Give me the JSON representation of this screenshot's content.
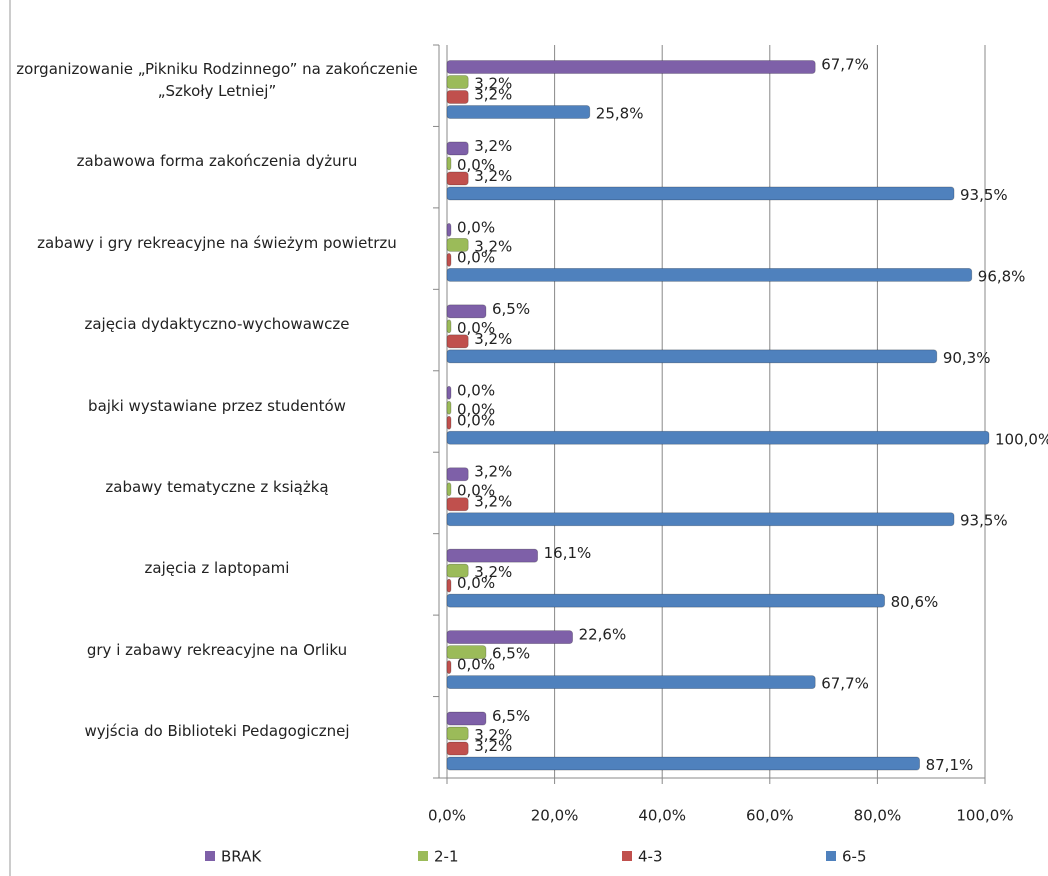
{
  "chart_data": {
    "type": "bar",
    "orientation": "horizontal",
    "categories": [
      "zorganizowanie „Pikniku Rodzinnego” na zakończenie „Szkoły Letniej”",
      "zabawowa forma zakończenia dyżuru",
      "zabawy i gry rekreacyjne na świeżym powietrzu",
      "zajęcia dydaktyczno-wychowawcze",
      "bajki wystawiane przez studentów",
      "zabawy tematyczne z książką",
      "zajęcia z laptopami",
      "gry i zabawy rekreacyjne na Orliku",
      "wyjścia do Biblioteki Pedagogicznej"
    ],
    "series": [
      {
        "name": "BRAK",
        "color": "#7e60a8",
        "values": [
          67.7,
          3.2,
          0.0,
          6.5,
          0.0,
          3.2,
          16.1,
          22.6,
          6.5
        ],
        "value_labels": [
          "67,7%",
          "3,2%",
          "0,0%",
          "6,5%",
          "0,0%",
          "3,2%",
          "16,1%",
          "22,6%",
          "6,5%"
        ]
      },
      {
        "name": "2-1",
        "color": "#9bbb59",
        "values": [
          3.2,
          0.0,
          3.2,
          0.0,
          0.0,
          0.0,
          3.2,
          6.5,
          3.2
        ],
        "value_labels": [
          "3,2%",
          "0,0%",
          "3,2%",
          "0,0%",
          "0,0%",
          "0,0%",
          "3,2%",
          "6,5%",
          "3,2%"
        ]
      },
      {
        "name": "4-3",
        "color": "#c0504d",
        "values": [
          3.2,
          3.2,
          0.0,
          3.2,
          0.0,
          3.2,
          0.0,
          0.0,
          3.2
        ],
        "value_labels": [
          "3,2%",
          "3,2%",
          "0,0%",
          "3,2%",
          "0,0%",
          "3,2%",
          "0,0%",
          "0,0%",
          "3,2%"
        ]
      },
      {
        "name": "6-5",
        "color": "#4f81bd",
        "values": [
          25.8,
          93.5,
          96.8,
          90.3,
          100.0,
          93.5,
          80.6,
          67.7,
          87.1
        ],
        "value_labels": [
          "25,8%",
          "93,5%",
          "96,8%",
          "90,3%",
          "100,0%",
          "93,5%",
          "80,6%",
          "67,7%",
          "87,1%"
        ]
      }
    ],
    "xlim": [
      0,
      100
    ],
    "xticks": [
      {
        "value": 0,
        "label": "0,0%"
      },
      {
        "value": 20,
        "label": "20,0%"
      },
      {
        "value": 40,
        "label": "40,0%"
      },
      {
        "value": 60,
        "label": "60,0%"
      },
      {
        "value": 80,
        "label": "80,0%"
      },
      {
        "value": 100,
        "label": "100,0%"
      }
    ],
    "grid": true,
    "legend": "bottom"
  }
}
